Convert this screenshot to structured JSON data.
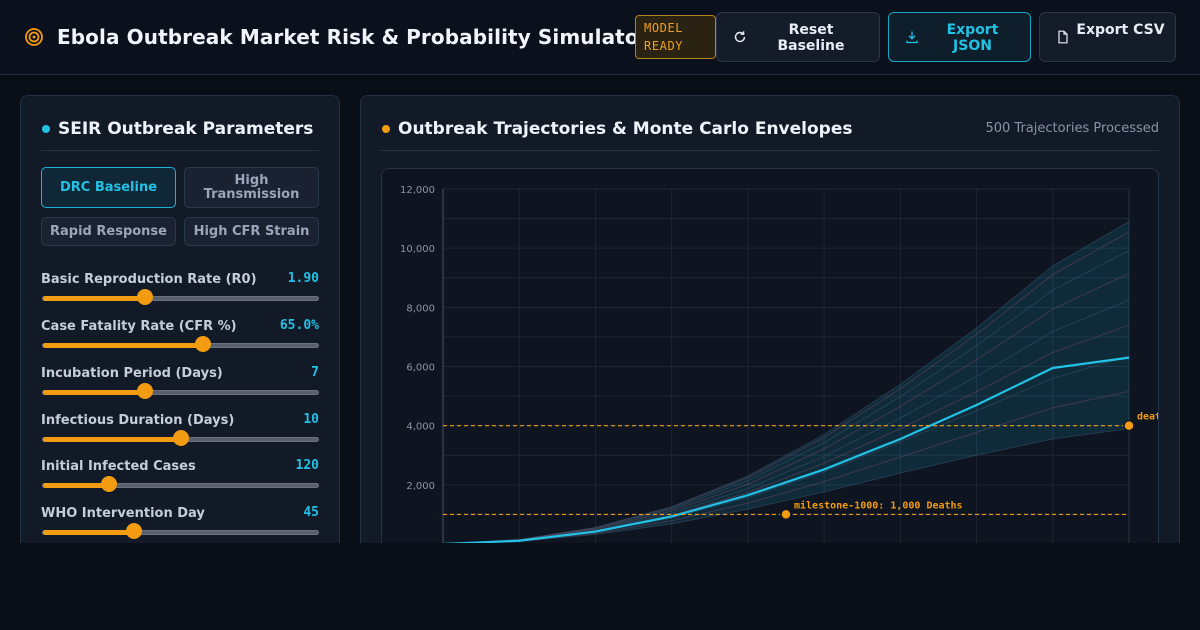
{
  "header": {
    "title": "Ebola Outbreak Market Risk & Probability Simulator",
    "status_badge": "MODEL READY",
    "buttons": {
      "reset": "Reset Baseline",
      "export_json": "Export JSON",
      "export_csv": "Export CSV"
    }
  },
  "colors": {
    "accent": "#22c1e6",
    "warning": "#f39c12",
    "background": "#0a0e17",
    "panel": "#121a28"
  },
  "icons": {
    "brand": "target-icon",
    "reset": "refresh-icon",
    "export_json": "download-icon",
    "export_csv": "file-icon"
  },
  "params_panel": {
    "title": "SEIR Outbreak Parameters",
    "presets": [
      {
        "label": "DRC Baseline",
        "active": true
      },
      {
        "label": "High Transmission",
        "active": false
      },
      {
        "label": "Rapid Response",
        "active": false
      },
      {
        "label": "High CFR Strain",
        "active": false
      }
    ],
    "params": [
      {
        "label": "Basic Reproduction Rate (R0)",
        "value": "1.90",
        "fraction": 0.37
      },
      {
        "label": "Case Fatality Rate (CFR %)",
        "value": "65.0%",
        "fraction": 0.58
      },
      {
        "label": "Incubation Period (Days)",
        "value": "7",
        "fraction": 0.37
      },
      {
        "label": "Infectious Duration (Days)",
        "value": "10",
        "fraction": 0.5
      },
      {
        "label": "Initial Infected Cases",
        "value": "120",
        "fraction": 0.24
      },
      {
        "label": "WHO Intervention Day",
        "value": "45",
        "fraction": 0.33
      }
    ]
  },
  "chart_panel": {
    "title": "Outbreak Trajectories & Monte Carlo Envelopes",
    "trajectory_count": "500 Trajectories Processed"
  },
  "chart_data": {
    "type": "line",
    "title": "",
    "xlabel": "",
    "ylabel": "",
    "ylim": [
      0,
      12000
    ],
    "y_ticks": [
      "2,000",
      "4,000",
      "6,000",
      "8,000",
      "10,000",
      "12,000"
    ],
    "y_tick_values": [
      2000,
      4000,
      6000,
      8000,
      10000,
      12000
    ],
    "grid": true,
    "x": [
      0,
      1,
      2,
      3,
      4,
      5,
      6,
      7,
      8,
      9
    ],
    "series": [
      {
        "values": [
          0,
          110,
          420,
          930,
          1650,
          2520,
          3550,
          4700,
          5950,
          6300
        ]
      }
    ],
    "envelope": {
      "upper": [
        0,
        150,
        560,
        1260,
        2300,
        3700,
        5400,
        7300,
        9400,
        10900
      ],
      "lower": [
        0,
        90,
        320,
        680,
        1180,
        1760,
        2400,
        3000,
        3550,
        3900
      ]
    },
    "thresholds": [
      {
        "value": 1000,
        "label": "milestone-1000: 1,000 Deaths",
        "marker_x": 4.5
      },
      {
        "value": 4000,
        "label": "deaths",
        "marker_x": 9
      }
    ]
  }
}
